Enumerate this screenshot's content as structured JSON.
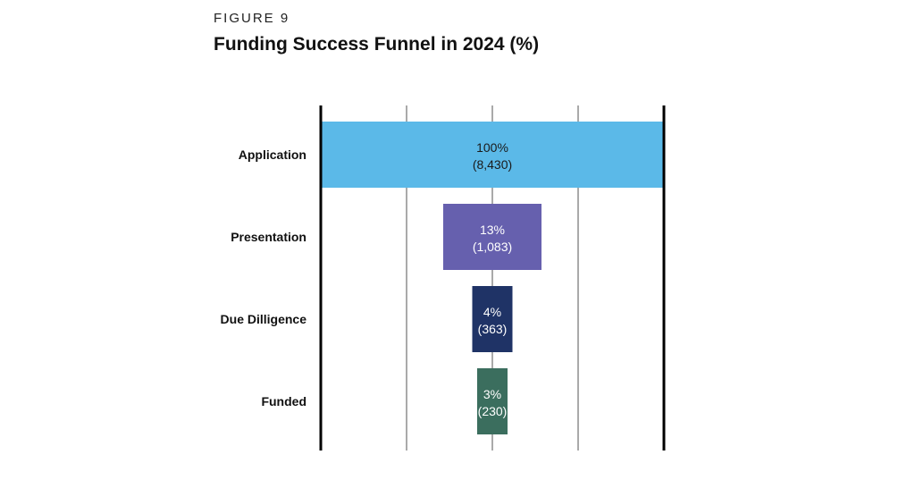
{
  "figure_label": "FIGURE 9",
  "chart_data": {
    "type": "bar",
    "subtype": "funnel",
    "title": "Funding Success Funnel in 2024 (%)",
    "categories": [
      "Application",
      "Presentation",
      "Due Dilligence",
      "Funded"
    ],
    "values": [
      100,
      13,
      4,
      3
    ],
    "counts": [
      8430,
      1083,
      363,
      230
    ],
    "value_labels": [
      "100%",
      "13%",
      "4%",
      "3%"
    ],
    "count_labels": [
      "(8,430)",
      "(1,083)",
      "(363)",
      "(230)"
    ],
    "colors": [
      "#5BB9E8",
      "#6660AE",
      "#1F3366",
      "#3B6E5E"
    ],
    "label_colors": [
      "#1a1a1a",
      "#ffffff",
      "#ffffff",
      "#ffffff"
    ],
    "grid": true,
    "legend": "none"
  }
}
